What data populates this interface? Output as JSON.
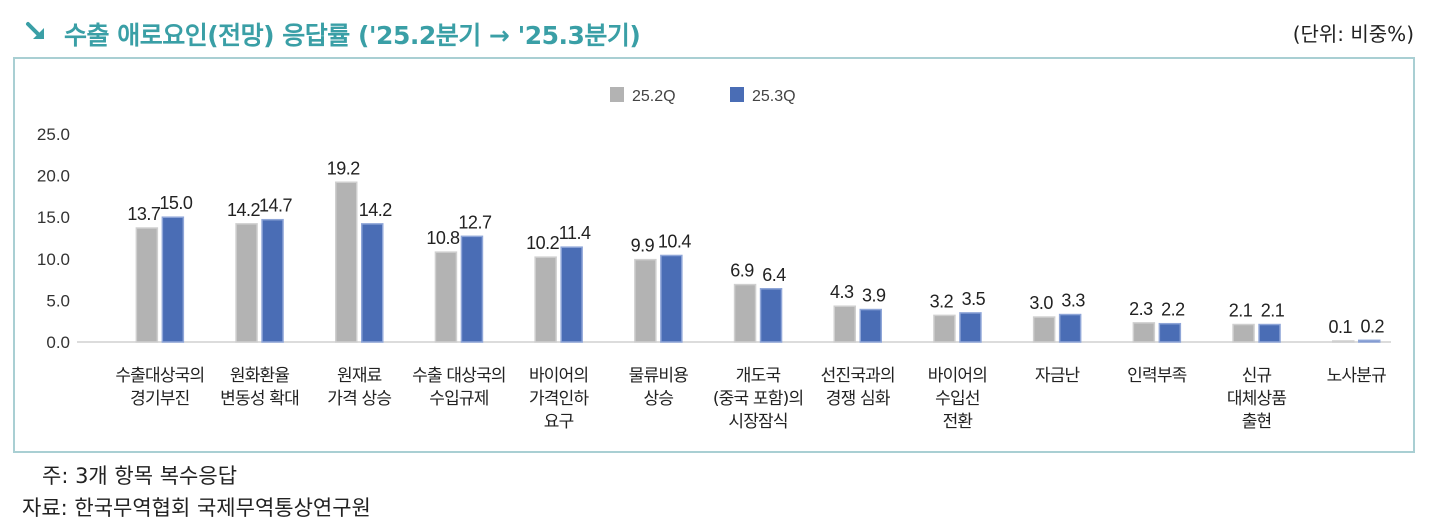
{
  "header": {
    "title": "수출 애로요인(전망) 응답률 ('25.2분기 → '25.3분기)",
    "unit": "(단위: 비중%)"
  },
  "footer": {
    "note": "주: 3개 항목 복수응답",
    "source": "자료: 한국무역협회 국제무역통상연구원"
  },
  "colors": {
    "title": "#3a9fa6",
    "frame": "#a9cfd3",
    "series_2q": "#b3b3b3",
    "series_3q": "#4a6db5"
  },
  "chart_data": {
    "type": "bar",
    "title": "수출 애로요인(전망) 응답률 ('25.2분기 → '25.3분기)",
    "xlabel": "",
    "ylabel": "",
    "ylim": [
      0,
      25
    ],
    "yticks": [
      "0.0",
      "5.0",
      "10.0",
      "15.0",
      "20.0",
      "25.0"
    ],
    "legend_position": "top-center",
    "grid": false,
    "categories": [
      [
        "수출대상국의",
        "경기부진"
      ],
      [
        "원화환율",
        "변동성 확대"
      ],
      [
        "원재료",
        "가격 상승"
      ],
      [
        "수출 대상국의",
        "수입규제"
      ],
      [
        "바이어의",
        "가격인하",
        "요구"
      ],
      [
        "물류비용",
        "상승"
      ],
      [
        "개도국",
        "(중국 포함)의",
        "시장잠식"
      ],
      [
        "선진국과의",
        "경쟁 심화"
      ],
      [
        "바이어의",
        "수입선",
        "전환"
      ],
      [
        "자금난"
      ],
      [
        "인력부족"
      ],
      [
        "신규",
        "대체상품",
        "출현"
      ],
      [
        "노사분규"
      ]
    ],
    "series": [
      {
        "name": "25.2Q",
        "values": [
          13.7,
          14.2,
          19.2,
          10.8,
          10.2,
          9.9,
          6.9,
          4.3,
          3.2,
          3.0,
          2.3,
          2.1,
          0.1
        ],
        "labels": [
          "13.7",
          "14.2",
          "19.2",
          "10.8",
          "10.2",
          "9.9",
          "6.9",
          "4.3",
          "3.2",
          "3.0",
          "2.3",
          "2.1",
          "0.1"
        ]
      },
      {
        "name": "25.3Q",
        "values": [
          15.0,
          14.7,
          14.2,
          12.7,
          11.4,
          10.4,
          6.4,
          3.9,
          3.5,
          3.3,
          2.2,
          2.1,
          0.2
        ],
        "labels": [
          "15.0",
          "14.7",
          "14.2",
          "12.7",
          "11.4",
          "10.4",
          "6.4",
          "3.9",
          "3.5",
          "3.3",
          "2.2",
          "2.1",
          "0.2"
        ]
      }
    ]
  }
}
